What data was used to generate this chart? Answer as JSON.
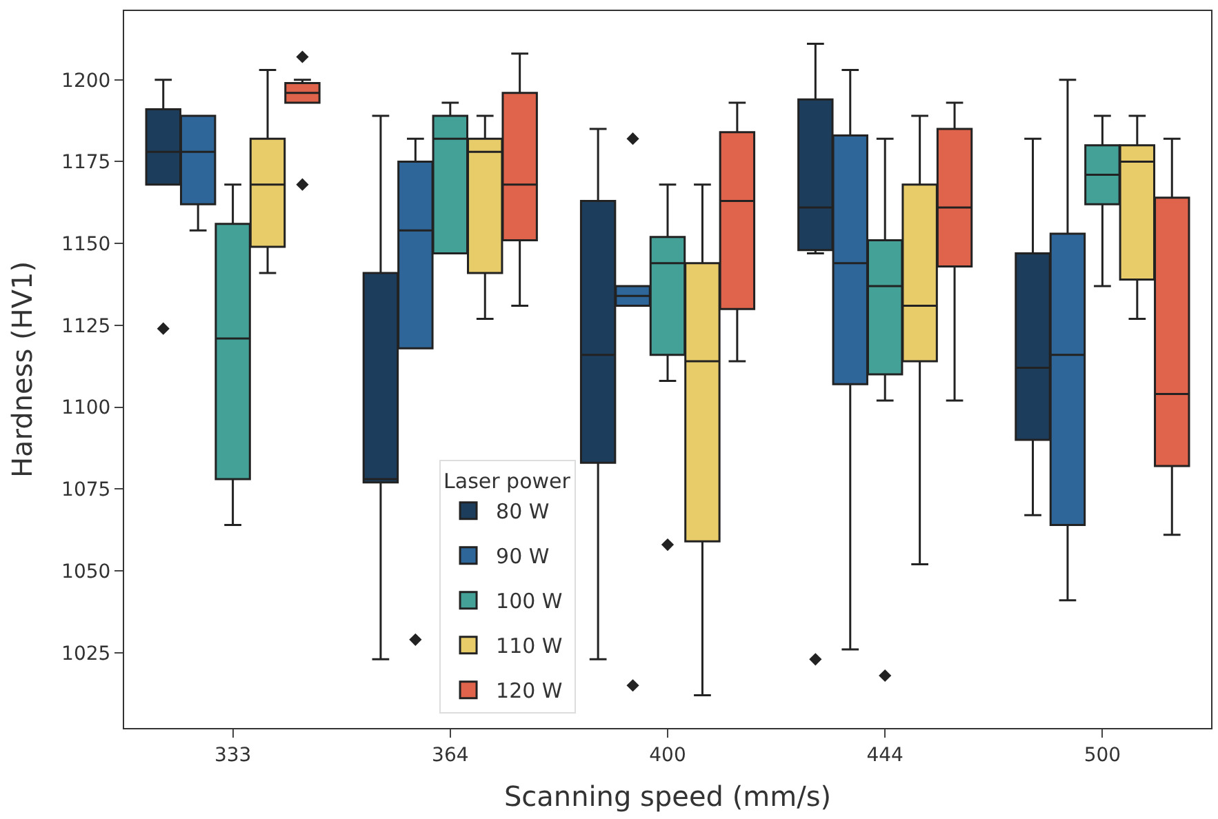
{
  "chart_data": {
    "type": "box",
    "xlabel": "Scanning speed (mm/s)",
    "ylabel": "Hardness (HV1)",
    "legend_title": "Laser power",
    "categories": [
      "333",
      "364",
      "400",
      "444",
      "500"
    ],
    "ylim": [
      1002,
      1221
    ],
    "yticks": [
      1025,
      1050,
      1075,
      1100,
      1125,
      1150,
      1175,
      1200
    ],
    "legend": "bottom",
    "marker": "diamond",
    "series": [
      {
        "name": "80 W",
        "color": "#1d3d5c",
        "boxes": [
          {
            "low": 1168,
            "q1": 1168,
            "median": 1178,
            "q3": 1191,
            "high": 1200,
            "outliers": [
              1124
            ]
          },
          {
            "low": 1023,
            "q1": 1077,
            "median": 1078,
            "q3": 1141,
            "high": 1189
          },
          {
            "low": 1023,
            "q1": 1083,
            "median": 1116,
            "q3": 1163,
            "high": 1185
          },
          {
            "low": 1147,
            "q1": 1148,
            "median": 1161,
            "q3": 1194,
            "high": 1211,
            "outliers": [
              1023
            ]
          },
          {
            "low": 1067,
            "q1": 1090,
            "median": 1112,
            "q3": 1147,
            "high": 1182
          }
        ]
      },
      {
        "name": "90 W",
        "color": "#2e6699",
        "boxes": [
          {
            "low": 1154,
            "q1": 1162,
            "median": 1178,
            "q3": 1189,
            "high": 1189
          },
          {
            "low": 1118,
            "q1": 1118,
            "median": 1154,
            "q3": 1175,
            "high": 1182,
            "outliers": [
              1029
            ]
          },
          {
            "low": 1131,
            "q1": 1131,
            "median": 1134,
            "q3": 1137,
            "high": 1137,
            "outliers": [
              1182,
              1015
            ]
          },
          {
            "low": 1026,
            "q1": 1107,
            "median": 1144,
            "q3": 1183,
            "high": 1203
          },
          {
            "low": 1041,
            "q1": 1064,
            "median": 1116,
            "q3": 1153,
            "high": 1200
          }
        ]
      },
      {
        "name": "100 W",
        "color": "#43a197",
        "boxes": [
          {
            "low": 1064,
            "q1": 1078,
            "median": 1121,
            "q3": 1156,
            "high": 1168
          },
          {
            "low": 1147,
            "q1": 1147,
            "median": 1182,
            "q3": 1189,
            "high": 1193
          },
          {
            "low": 1108,
            "q1": 1116,
            "median": 1144,
            "q3": 1152,
            "high": 1168,
            "outliers": [
              1058
            ]
          },
          {
            "low": 1102,
            "q1": 1110,
            "median": 1137,
            "q3": 1151,
            "high": 1182,
            "outliers": [
              1018
            ]
          },
          {
            "low": 1137,
            "q1": 1162,
            "median": 1171,
            "q3": 1180,
            "high": 1189
          }
        ]
      },
      {
        "name": "110 W",
        "color": "#e8cc6a",
        "boxes": [
          {
            "low": 1141,
            "q1": 1149,
            "median": 1168,
            "q3": 1182,
            "high": 1203
          },
          {
            "low": 1127,
            "q1": 1141,
            "median": 1178,
            "q3": 1182,
            "high": 1189
          },
          {
            "low": 1012,
            "q1": 1059,
            "median": 1114,
            "q3": 1144,
            "high": 1168
          },
          {
            "low": 1052,
            "q1": 1114,
            "median": 1131,
            "q3": 1168,
            "high": 1189
          },
          {
            "low": 1127,
            "q1": 1139,
            "median": 1175,
            "q3": 1180,
            "high": 1189
          }
        ]
      },
      {
        "name": "120 W",
        "color": "#e0634b",
        "boxes": [
          {
            "low": 1193,
            "q1": 1193,
            "median": 1196,
            "q3": 1199,
            "high": 1200,
            "outliers": [
              1207,
              1168
            ]
          },
          {
            "low": 1131,
            "q1": 1151,
            "median": 1168,
            "q3": 1196,
            "high": 1208
          },
          {
            "low": 1114,
            "q1": 1130,
            "median": 1163,
            "q3": 1184,
            "high": 1193
          },
          {
            "low": 1102,
            "q1": 1143,
            "median": 1161,
            "q3": 1185,
            "high": 1193
          },
          {
            "low": 1061,
            "q1": 1082,
            "median": 1104,
            "q3": 1164,
            "high": 1182
          }
        ]
      }
    ]
  }
}
